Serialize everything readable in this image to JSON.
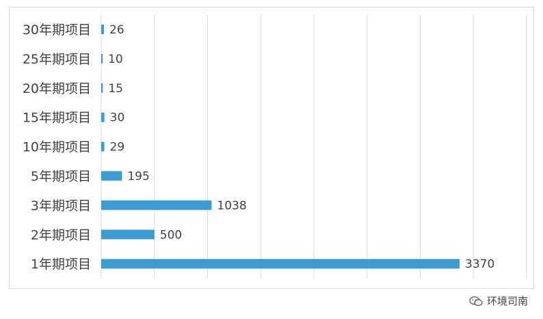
{
  "chart_data": {
    "type": "bar",
    "orientation": "horizontal",
    "categories": [
      "30年期项目",
      "25年期项目",
      "20年期项目",
      "15年期项目",
      "10年期项目",
      "5年期项目",
      "3年期项目",
      "2年期项目",
      "1年期项目"
    ],
    "values": [
      26,
      10,
      15,
      30,
      29,
      195,
      1038,
      500,
      3370
    ],
    "xlim": [
      0,
      4000
    ],
    "grid": true,
    "bar_color": "#3d9bd4",
    "gridline_color": "#d9d9d9"
  },
  "watermark": {
    "icon": "wechat-icon",
    "text": "环境司南"
  }
}
